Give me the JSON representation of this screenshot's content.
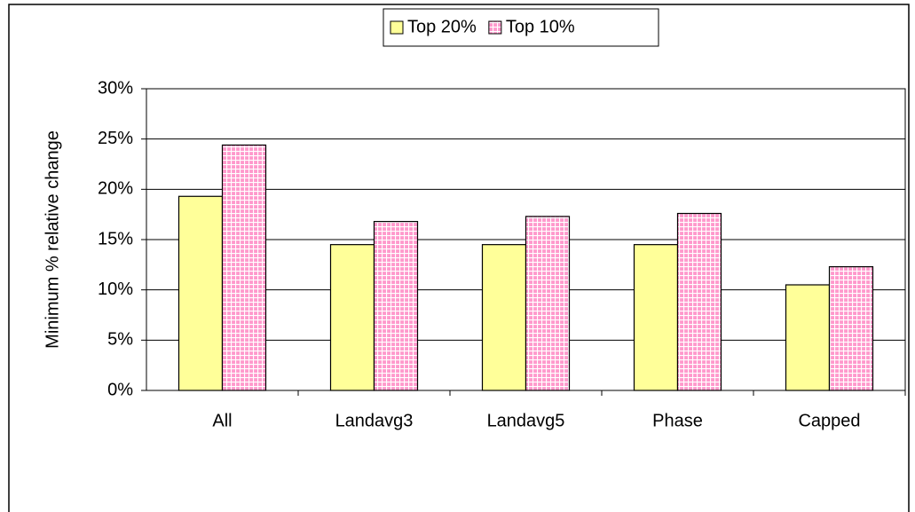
{
  "chart_data": {
    "type": "bar",
    "categories": [
      "All",
      "Landavg3",
      "Landavg5",
      "Phase",
      "Capped"
    ],
    "series": [
      {
        "name": "Top 20%",
        "color": "#ffff99",
        "values": [
          19.3,
          14.5,
          14.5,
          14.5,
          10.5
        ]
      },
      {
        "name": "Top 10%",
        "color": "#ff99cc",
        "values": [
          24.4,
          16.8,
          17.3,
          17.6,
          12.3
        ]
      }
    ],
    "y_label": "Minimum % relative change",
    "ylim": [
      0,
      30
    ],
    "yticks": [
      {
        "value": 0,
        "label": "0%"
      },
      {
        "value": 5,
        "label": "5%"
      },
      {
        "value": 10,
        "label": "10%"
      },
      {
        "value": 15,
        "label": "15%"
      },
      {
        "value": 20,
        "label": "20%"
      },
      {
        "value": 25,
        "label": "25%"
      },
      {
        "value": 30,
        "label": "30%"
      }
    ],
    "grid": true,
    "legend": "top"
  }
}
